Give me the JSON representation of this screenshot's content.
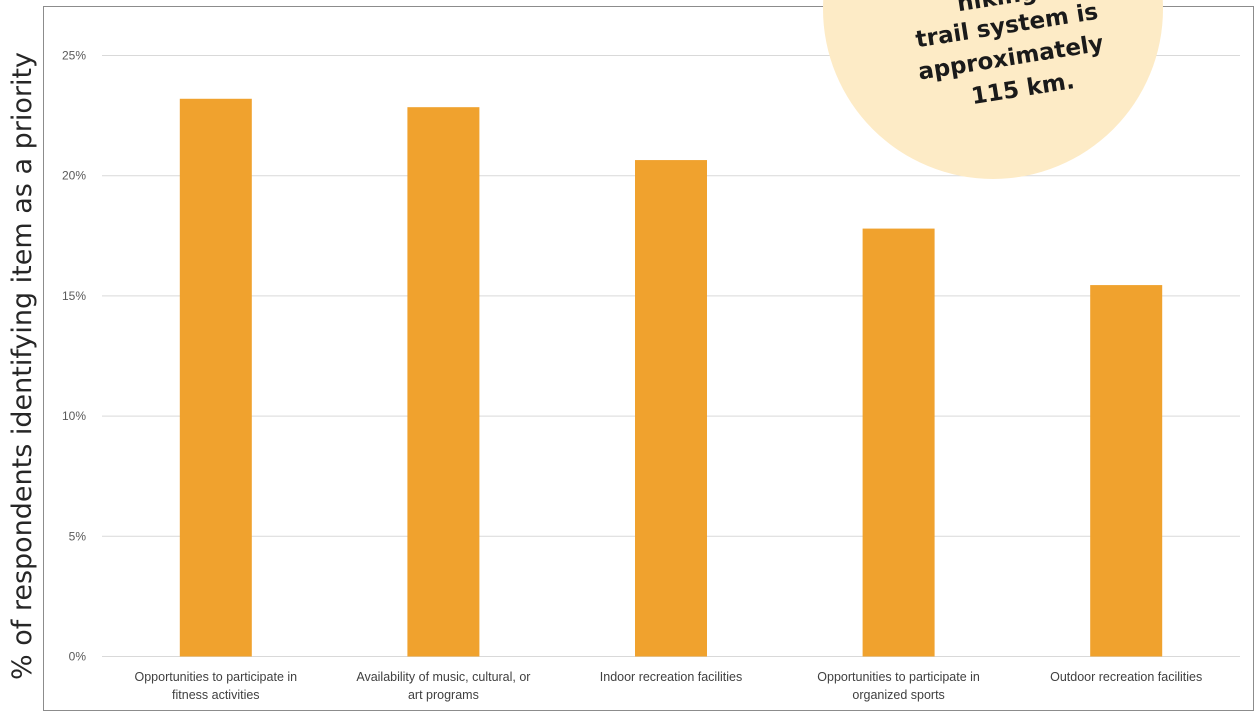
{
  "chart_data": {
    "type": "bar",
    "categories": [
      [
        "Opportunities to participate in",
        "fitness activities"
      ],
      [
        "Availability of music, cultural, or",
        "art programs"
      ],
      [
        "Indoor recreation facilities"
      ],
      [
        "Opportunities to participate in",
        "organized sports"
      ],
      [
        "Outdoor recreation facilities"
      ]
    ],
    "values": [
      23.2,
      22.85,
      20.65,
      17.8,
      15.45
    ],
    "ylabel": "% of respondents identifying item as a priority",
    "xlabel": "",
    "ylim": [
      0,
      25
    ],
    "yticks": [
      0,
      5,
      10,
      15,
      20,
      25
    ],
    "ytick_labels": [
      "0%",
      "5%",
      "10%",
      "15%",
      "20%",
      "25%"
    ],
    "grid": true,
    "bar_color": "#f0a22e",
    "grid_color": "#d9d9d9"
  },
  "callout": {
    "lines": [
      "hiking",
      "trail system is",
      "approximately",
      "115 km."
    ],
    "fill_color": "#fdebc6"
  }
}
